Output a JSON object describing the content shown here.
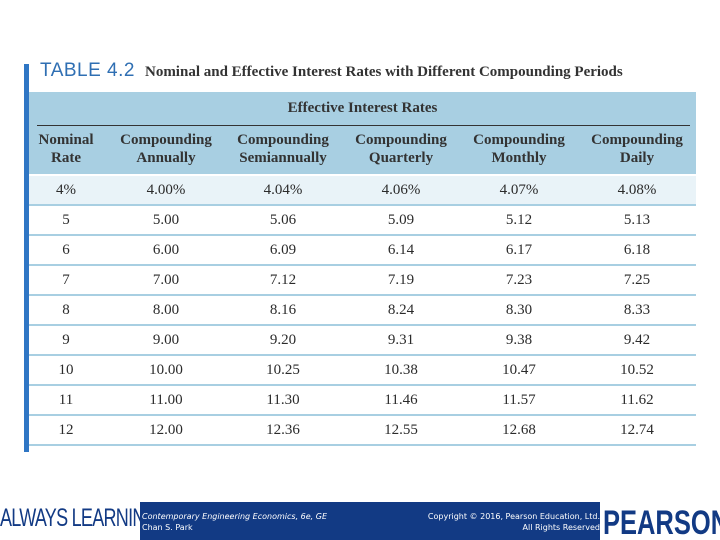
{
  "caption": {
    "label": "TABLE 4.2",
    "title": "Nominal and Effective Interest Rates with Different Compounding Periods"
  },
  "table": {
    "group_header": "Effective Interest Rates",
    "columns": [
      {
        "line1": "Nominal",
        "line2": "Rate"
      },
      {
        "line1": "Compounding",
        "line2": "Annually"
      },
      {
        "line1": "Compounding",
        "line2": "Semiannually"
      },
      {
        "line1": "Compounding",
        "line2": "Quarterly"
      },
      {
        "line1": "Compounding",
        "line2": "Monthly"
      },
      {
        "line1": "Compounding",
        "line2": "Daily"
      }
    ],
    "rows": [
      [
        "4%",
        "4.00%",
        "4.04%",
        "4.06%",
        "4.07%",
        "4.08%"
      ],
      [
        "5",
        "5.00",
        "5.06",
        "5.09",
        "5.12",
        "5.13"
      ],
      [
        "6",
        "6.00",
        "6.09",
        "6.14",
        "6.17",
        "6.18"
      ],
      [
        "7",
        "7.00",
        "7.12",
        "7.19",
        "7.23",
        "7.25"
      ],
      [
        "8",
        "8.00",
        "8.16",
        "8.24",
        "8.30",
        "8.33"
      ],
      [
        "9",
        "9.00",
        "9.20",
        "9.31",
        "9.38",
        "9.42"
      ],
      [
        "10",
        "10.00",
        "10.25",
        "10.38",
        "10.47",
        "10.52"
      ],
      [
        "11",
        "11.00",
        "11.30",
        "11.46",
        "11.57",
        "11.62"
      ],
      [
        "12",
        "12.00",
        "12.36",
        "12.55",
        "12.68",
        "12.74"
      ]
    ]
  },
  "footer": {
    "slogan": "ALWAYS LEARNING",
    "book_title": "Contemporary Engineering Economics, 6e, GE",
    "author": "Chan S. Park",
    "copyright": "Copyright © 2016, Pearson Education, Ltd.",
    "rights": "All Rights Reserved",
    "brand": "PEARSON"
  },
  "colors": {
    "accent_bar": "#2f76c4",
    "header_fill": "#a8cfe2",
    "footer_fill": "#123a84"
  }
}
